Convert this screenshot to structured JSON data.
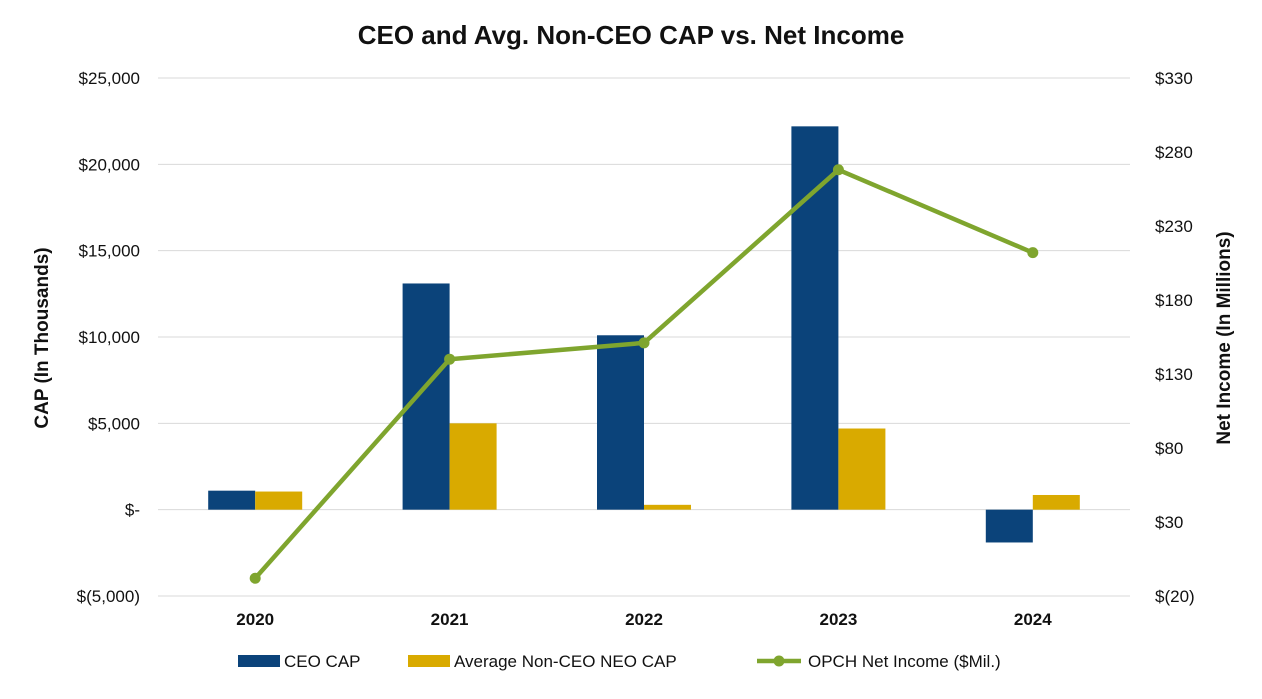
{
  "chart_data": {
    "type": "bar",
    "title": "CEO and Avg. Non-CEO CAP vs. Net Income",
    "categories": [
      "2020",
      "2021",
      "2022",
      "2023",
      "2024"
    ],
    "ylabel": "CAP (In Thousands)",
    "y2label": "Net Income (In Millions)",
    "ylim": [
      -5000,
      25000
    ],
    "y2lim": [
      -20,
      330
    ],
    "y_ticks": [
      25000,
      20000,
      15000,
      10000,
      5000,
      0,
      -5000
    ],
    "y_tick_labels": [
      "$25,000",
      "$20,000",
      "$15,000",
      "$10,000",
      "$5,000",
      "$-",
      "$(5,000)"
    ],
    "y2_ticks": [
      330,
      280,
      230,
      180,
      130,
      80,
      30,
      -20
    ],
    "y2_tick_labels": [
      "$330",
      "$280",
      "$230",
      "$180",
      "$130",
      "$80",
      "$30",
      "$(20)"
    ],
    "grid": true,
    "legend_position": "bottom",
    "series": [
      {
        "name": "CEO CAP",
        "type": "bar",
        "axis": "left",
        "color": "#0b437a",
        "values": [
          1100,
          13100,
          10100,
          22200,
          -1900
        ]
      },
      {
        "name": "Average Non-CEO NEO CAP",
        "type": "bar",
        "axis": "left",
        "color": "#d9aa00",
        "values": [
          1050,
          5000,
          280,
          4700,
          850
        ]
      },
      {
        "name": "OPCH Net Income ($Mil.)",
        "type": "line",
        "axis": "right",
        "color": "#7fa52e",
        "values": [
          -8,
          140,
          151,
          268,
          212
        ]
      }
    ]
  }
}
